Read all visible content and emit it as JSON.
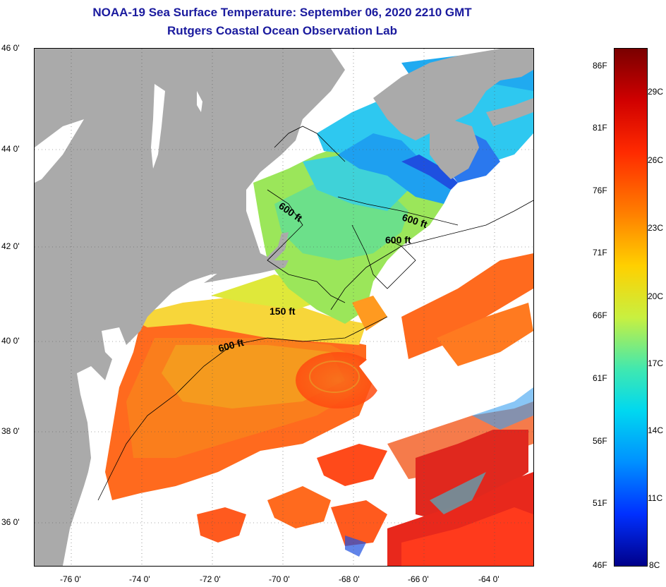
{
  "title": "NOAA-19 Sea Surface Temperature:  September 06, 2020 2210 GMT",
  "subtitle": "Rutgers Coastal Ocean Observation Lab",
  "map": {
    "lat_ticks": [
      "46 0'",
      "44 0'",
      "42 0'",
      "40 0'",
      "38 0'",
      "36 0'"
    ],
    "lon_ticks": [
      "-76 0'",
      "-74 0'",
      "-72 0'",
      "-70 0'",
      "-68 0'",
      "-66 0'",
      "-64 0'"
    ],
    "contour_labels": [
      "600 ft",
      "600 ft",
      "600 ft",
      "150 ft",
      "600 ft"
    ],
    "colors": {
      "land": "#aaaaaa",
      "cloud": "#ffffff",
      "warm": "#ff5a1e",
      "cool": "#1e64ff"
    }
  },
  "colorbar": {
    "fahrenheit_labels": [
      "86F",
      "81F",
      "76F",
      "71F",
      "66F",
      "61F",
      "56F",
      "51F",
      "46F"
    ],
    "celsius_labels": [
      "29C",
      "26C",
      "23C",
      "20C",
      "17C",
      "14C",
      "11C",
      "8C"
    ]
  }
}
